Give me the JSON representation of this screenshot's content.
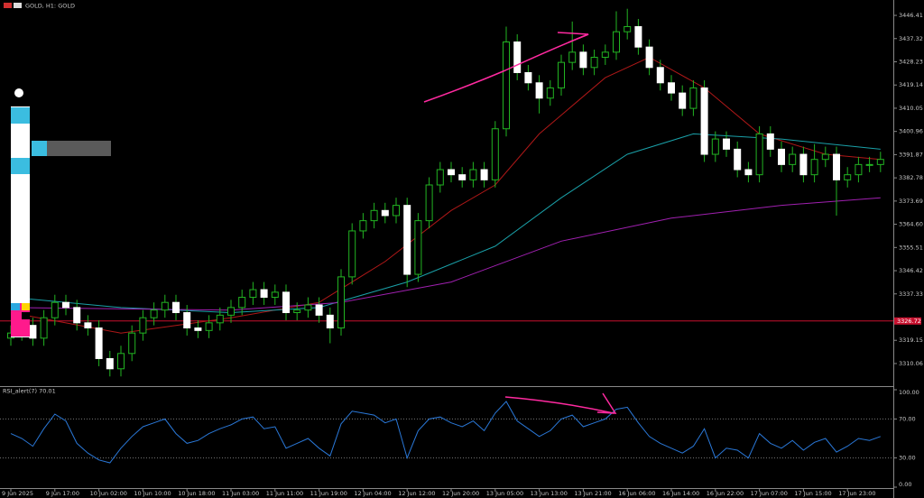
{
  "chart_data": {
    "type": "candlestick",
    "title": "GOLD, H1: GOLD",
    "categories": [
      "9 Jun 2025",
      null,
      null,
      null,
      "9 Jun 17:00",
      null,
      null,
      null,
      "10 Jun 02:00",
      null,
      null,
      null,
      "10 Jun 10:00",
      null,
      null,
      null,
      "10 Jun 18:00",
      null,
      null,
      null,
      "11 Jun 03:00",
      null,
      null,
      null,
      "11 Jun 11:00",
      null,
      null,
      null,
      "11 Jun 19:00",
      null,
      null,
      null,
      "12 Jun 04:00",
      null,
      null,
      null,
      "12 Jun 12:00",
      null,
      null,
      null,
      "12 Jun 20:00",
      null,
      null,
      null,
      "13 Jun 05:00",
      null,
      null,
      null,
      "13 Jun 13:00",
      null,
      null,
      null,
      "13 Jun 21:00",
      null,
      null,
      null,
      "16 Jun 06:00",
      null,
      null,
      null,
      "16 Jun 14:00",
      null,
      null,
      null,
      "16 Jun 22:00",
      null,
      null,
      null,
      "17 Jun 07:00",
      null,
      null,
      null,
      "17 Jun 15:00",
      null,
      null,
      null,
      "17 Jun 23:00",
      null,
      null,
      null
    ],
    "open": [
      3320,
      3322,
      3325,
      3320,
      3328,
      3334,
      3332,
      3326,
      3324,
      3312,
      3308,
      3314,
      3322,
      3328,
      3331,
      3334,
      3330,
      3324,
      3323,
      3326,
      3329,
      3332,
      3336,
      3339,
      3336,
      3338,
      3330,
      3331,
      3333,
      3329,
      3324,
      3344,
      3362,
      3366,
      3370,
      3368,
      3372,
      3345,
      3366,
      3380,
      3386,
      3384,
      3382,
      3386,
      3382,
      3402,
      3436,
      3424,
      3420,
      3414,
      3418,
      3428,
      3432,
      3426,
      3430,
      3432,
      3440,
      3442,
      3434,
      3426,
      3420,
      3416,
      3410,
      3418,
      3392,
      3398,
      3394,
      3386,
      3384,
      3400,
      3394,
      3388,
      3392,
      3384,
      3390,
      3392,
      3382,
      3384,
      3388,
      3388
    ],
    "high": [
      3325,
      3328,
      3328,
      3331,
      3337,
      3337,
      3335,
      3329,
      3327,
      3315,
      3317,
      3325,
      3331,
      3334,
      3337,
      3337,
      3333,
      3327,
      3329,
      3332,
      3335,
      3339,
      3342,
      3342,
      3341,
      3341,
      3334,
      3336,
      3336,
      3332,
      3347,
      3365,
      3369,
      3373,
      3373,
      3375,
      3375,
      3369,
      3383,
      3389,
      3389,
      3387,
      3389,
      3389,
      3405,
      3442,
      3439,
      3427,
      3423,
      3421,
      3431,
      3444,
      3435,
      3433,
      3435,
      3448,
      3449,
      3445,
      3437,
      3429,
      3423,
      3419,
      3421,
      3421,
      3401,
      3401,
      3397,
      3389,
      3403,
      3403,
      3397,
      3395,
      3395,
      3396,
      3395,
      3395,
      3387,
      3391,
      3391,
      3393
    ],
    "low": [
      3317,
      3319,
      3317,
      3317,
      3325,
      3329,
      3323,
      3321,
      3309,
      3305,
      3305,
      3311,
      3319,
      3325,
      3328,
      3327,
      3321,
      3320,
      3320,
      3323,
      3326,
      3329,
      3333,
      3333,
      3333,
      3327,
      3327,
      3328,
      3326,
      3318,
      3321,
      3341,
      3359,
      3363,
      3365,
      3365,
      3340,
      3342,
      3363,
      3377,
      3381,
      3379,
      3379,
      3379,
      3379,
      3399,
      3421,
      3417,
      3408,
      3411,
      3415,
      3425,
      3423,
      3423,
      3427,
      3429,
      3437,
      3431,
      3423,
      3417,
      3413,
      3407,
      3407,
      3389,
      3389,
      3391,
      3383,
      3381,
      3381,
      3391,
      3385,
      3385,
      3381,
      3381,
      3387,
      3368,
      3379,
      3381,
      3385,
      3385
    ],
    "close": [
      3322,
      3325,
      3320,
      3328,
      3334,
      3332,
      3326,
      3324,
      3312,
      3308,
      3314,
      3322,
      3328,
      3331,
      3334,
      3330,
      3324,
      3323,
      3326,
      3329,
      3332,
      3336,
      3339,
      3336,
      3338,
      3330,
      3331,
      3333,
      3329,
      3324,
      3344,
      3362,
      3366,
      3370,
      3368,
      3372,
      3345,
      3366,
      3380,
      3386,
      3384,
      3382,
      3386,
      3382,
      3402,
      3436,
      3424,
      3420,
      3414,
      3418,
      3428,
      3432,
      3426,
      3430,
      3432,
      3440,
      3442,
      3434,
      3426,
      3420,
      3416,
      3410,
      3418,
      3392,
      3398,
      3394,
      3386,
      3384,
      3400,
      3394,
      3388,
      3392,
      3384,
      3390,
      3392,
      3382,
      3384,
      3388,
      3388,
      3390
    ],
    "bull_color": "#000000",
    "bear_color": "#ffffff",
    "wick_color": "#22b422",
    "ylim": [
      3301.21,
      3452.43
    ],
    "yticks": [
      3310.06,
      3319.15,
      3337.33,
      3346.42,
      3355.51,
      {
        "value": 3364.6,
        "label": "3364.60"
      },
      3373.69,
      3382.78,
      3391.87,
      3400.96,
      3410.05,
      3419.14,
      3428.23,
      3437.32,
      3446.41
    ],
    "price_line": 3326.72,
    "price_line_color": "#c8102e",
    "moving_averages": [
      {
        "color": "#b01818",
        "x": [
          0,
          10,
          20,
          28,
          34,
          40,
          44,
          48,
          54,
          58,
          63,
          68,
          74,
          79
        ],
        "values": [
          3330,
          3322,
          3328,
          3334,
          3350,
          3370,
          3380,
          3400,
          3422,
          3430,
          3418,
          3400,
          3392,
          3390
        ]
      },
      {
        "color": "#1aa0a8",
        "x": [
          0,
          10,
          20,
          28,
          36,
          44,
          50,
          56,
          62,
          70,
          79
        ],
        "values": [
          3336,
          3332,
          3330,
          3332,
          3342,
          3356,
          3375,
          3392,
          3400,
          3398,
          3394
        ]
      },
      {
        "color": "#a020b0",
        "x": [
          0,
          20,
          30,
          40,
          50,
          60,
          70,
          79
        ],
        "values": [
          3332,
          3331,
          3334,
          3342,
          3358,
          3367,
          3372,
          3375
        ]
      }
    ],
    "indicator": {
      "title": "RSI_alert(7) 70.01",
      "color": "#2a78d8",
      "values": [
        55,
        50,
        42,
        60,
        75,
        68,
        45,
        35,
        28,
        25,
        40,
        52,
        62,
        66,
        70,
        55,
        45,
        48,
        55,
        60,
        64,
        70,
        72,
        60,
        62,
        40,
        45,
        50,
        40,
        32,
        65,
        78,
        76,
        74,
        66,
        70,
        30,
        58,
        70,
        72,
        66,
        62,
        68,
        58,
        76,
        88,
        68,
        60,
        52,
        58,
        70,
        74,
        62,
        66,
        70,
        80,
        82,
        66,
        52,
        45,
        40,
        35,
        42,
        60,
        30,
        40,
        38,
        30,
        55,
        45,
        40,
        48,
        38,
        46,
        50,
        36,
        42,
        50,
        48,
        52
      ],
      "ylim": [
        0,
        100
      ],
      "yticks": [
        {
          "value": 0,
          "label": "0.00"
        },
        {
          "value": 30,
          "label": "30.00"
        },
        {
          "value": 70,
          "label": "70.00"
        },
        {
          "value": 100,
          "label": "100.00"
        }
      ]
    }
  }
}
